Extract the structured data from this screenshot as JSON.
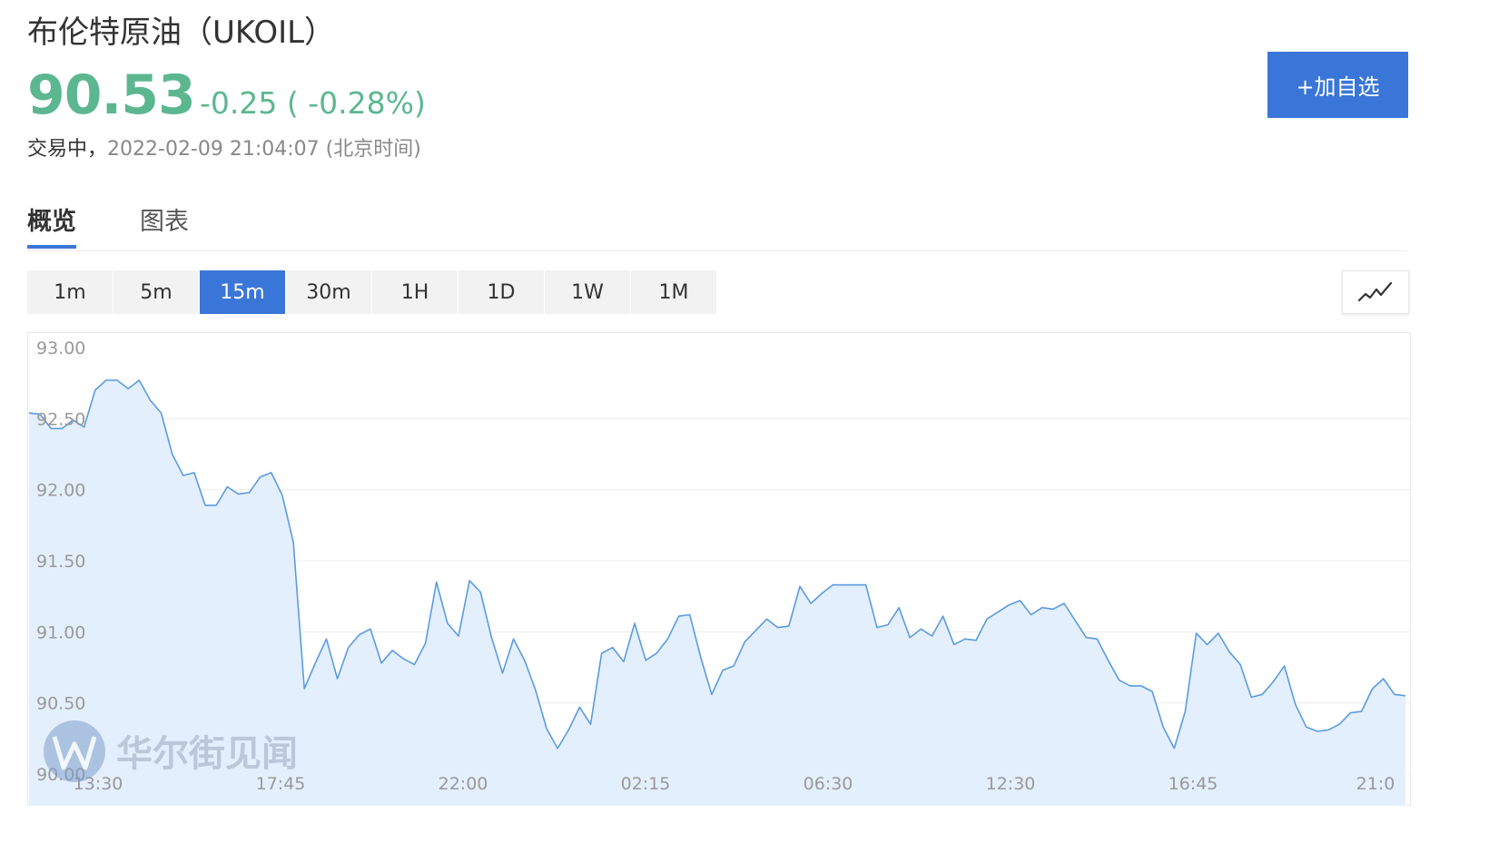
{
  "header": {
    "title": "布伦特原油（UKOIL）",
    "price": "90.53",
    "change": "-0.25 ( -0.28%)",
    "status": "交易中，",
    "timestamp": "2022-02-09 21:04:07 (北京时间)",
    "add_button_label": "+加自选"
  },
  "tabs": [
    {
      "label": "概览",
      "active": true
    },
    {
      "label": "图表",
      "active": false
    }
  ],
  "periods": [
    "1m",
    "5m",
    "15m",
    "30m",
    "1H",
    "1D",
    "1W",
    "1M"
  ],
  "active_period": "15m",
  "chart_type_icon": "line-chart-icon",
  "watermark": "华尔街见闻",
  "colors": {
    "accent": "#3a76d8",
    "price_green": "#5cb790",
    "line": "#5b9be0",
    "fill": "#e3effc"
  },
  "chart_data": {
    "type": "area",
    "title": "",
    "xlabel": "",
    "ylabel": "",
    "ylim": [
      90.0,
      93.0
    ],
    "y_ticks": [
      "93.00",
      "92.50",
      "92.00",
      "91.50",
      "91.00",
      "90.50",
      "90.00"
    ],
    "x_ticks": [
      "13:30",
      "17:45",
      "22:00",
      "02:15",
      "06:30",
      "12:30",
      "16:45",
      "21:0"
    ],
    "x_start": "13:30",
    "x_interval_minutes": 15,
    "grid": true,
    "series": [
      {
        "values": [
          92.54,
          92.53,
          92.43,
          92.43,
          92.49,
          92.44,
          92.7,
          92.77,
          92.77,
          92.71,
          92.77,
          92.63,
          92.54,
          92.25,
          92.1,
          92.12,
          91.89,
          91.89,
          92.02,
          91.97,
          91.98,
          92.09,
          92.12,
          91.96,
          91.63,
          90.6,
          90.78,
          90.95,
          90.67,
          90.89,
          90.98,
          91.02,
          90.78,
          90.87,
          90.81,
          90.77,
          90.92,
          91.35,
          91.06,
          90.97,
          91.36,
          91.28,
          90.96,
          90.71,
          90.95,
          90.8,
          90.59,
          90.32,
          90.18,
          90.31,
          90.47,
          90.35,
          90.85,
          90.89,
          90.79,
          91.06,
          90.8,
          90.85,
          90.95,
          91.11,
          91.12,
          90.82,
          90.56,
          90.73,
          90.76,
          90.93,
          91.01,
          91.09,
          91.03,
          91.04,
          91.32,
          91.2,
          91.27,
          91.33,
          91.33,
          91.33,
          91.33,
          91.03,
          91.05,
          91.17,
          90.96,
          91.02,
          90.97,
          91.11,
          90.91,
          90.95,
          90.94,
          91.09,
          91.14,
          91.19,
          91.22,
          91.12,
          91.17,
          91.16,
          91.2,
          91.08,
          90.96,
          90.95,
          90.8,
          90.66,
          90.62,
          90.62,
          90.58,
          90.33,
          90.18,
          90.44,
          90.99,
          90.91,
          90.99,
          90.86,
          90.77,
          90.54,
          90.56,
          90.65,
          90.76,
          90.49,
          90.33,
          90.3,
          90.31,
          90.35,
          90.43,
          90.44,
          90.6,
          90.67,
          90.56,
          90.55
        ]
      }
    ]
  }
}
